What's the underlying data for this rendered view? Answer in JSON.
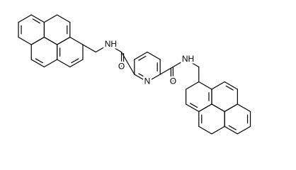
{
  "atoms": [
    "NH",
    "O",
    "N",
    "O",
    "NH"
  ]
}
